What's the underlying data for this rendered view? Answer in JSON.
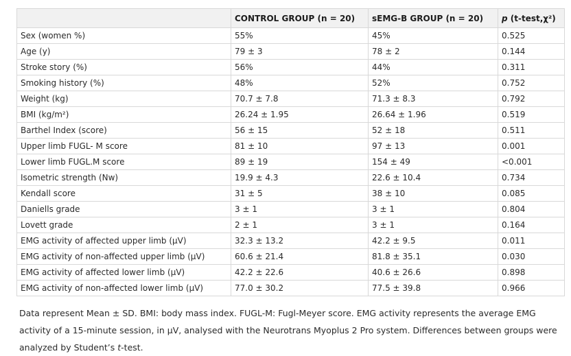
{
  "table": {
    "headers": {
      "empty": "",
      "control": "CONTROL GROUP (n = 20)",
      "semg": "sEMG-B GROUP (n = 20)",
      "p_letter": "p",
      "p_rest": " (t-test,χ²)"
    },
    "rows": [
      {
        "label": "Sex (women %)",
        "control": "55%",
        "semg": "45%",
        "p": "0.525"
      },
      {
        "label": "Age (y)",
        "control": "79 ± 3",
        "semg": "78 ± 2",
        "p": "0.144"
      },
      {
        "label": "Stroke story (%)",
        "control": "56%",
        "semg": "44%",
        "p": "0.311"
      },
      {
        "label": "Smoking history (%)",
        "control": "48%",
        "semg": "52%",
        "p": "0.752"
      },
      {
        "label": "Weight (kg)",
        "control": "70.7 ± 7.8",
        "semg": "71.3 ± 8.3",
        "p": "0.792"
      },
      {
        "label": "BMI (kg/m²)",
        "control": "26.24 ± 1.95",
        "semg": "26.64 ± 1.96",
        "p": "0.519"
      },
      {
        "label": "Barthel Index (score)",
        "control": "56 ± 15",
        "semg": "52 ± 18",
        "p": "0.511"
      },
      {
        "label": "Upper limb FUGL- M score",
        "control": "81 ± 10",
        "semg": "97 ± 13",
        "p": "0.001"
      },
      {
        "label": "Lower limb FUGL.M score",
        "control": "89 ± 19",
        "semg": "154 ± 49",
        "p": "<0.001"
      },
      {
        "label": "Isometric strength (Nw)",
        "control": "19.9 ± 4.3",
        "semg": "22.6 ± 10.4",
        "p": "0.734"
      },
      {
        "label": "Kendall score",
        "control": "31 ± 5",
        "semg": "38 ± 10",
        "p": "0.085"
      },
      {
        "label": "Daniells grade",
        "control": "3 ± 1",
        "semg": "3 ± 1",
        "p": "0.804"
      },
      {
        "label": "Lovett grade",
        "control": "2 ± 1",
        "semg": "3 ± 1",
        "p": "0.164"
      },
      {
        "label": "EMG activity of affected upper limb (μV)",
        "control": "32.3 ± 13.2",
        "semg": "42.2 ± 9.5",
        "p": "0.011"
      },
      {
        "label": "EMG activity of non-affected upper limb (μV)",
        "control": "60.6 ± 21.4",
        "semg": "81.8 ± 35.1",
        "p": "0.030"
      },
      {
        "label": "EMG activity of affected lower limb (μV)",
        "control": "42.2 ± 22.6",
        "semg": "40.6 ± 26.6",
        "p": "0.898"
      },
      {
        "label": "EMG activity of non-affected lower limb (μV)",
        "control": "77.0 ± 30.2",
        "semg": "77.5 ± 39.8",
        "p": "0.966"
      }
    ]
  },
  "footnote": {
    "before": "Data represent Mean ± SD. BMI: body mass index. FUGL-M: Fugl-Meyer score. EMG activity represents the average EMG activity of a 15-minute session, in μV, analysed with the Neurotrans Myoplus 2 Pro system. Differences between groups were analyzed by Student’s ",
    "italic": "t",
    "after": "-test."
  }
}
